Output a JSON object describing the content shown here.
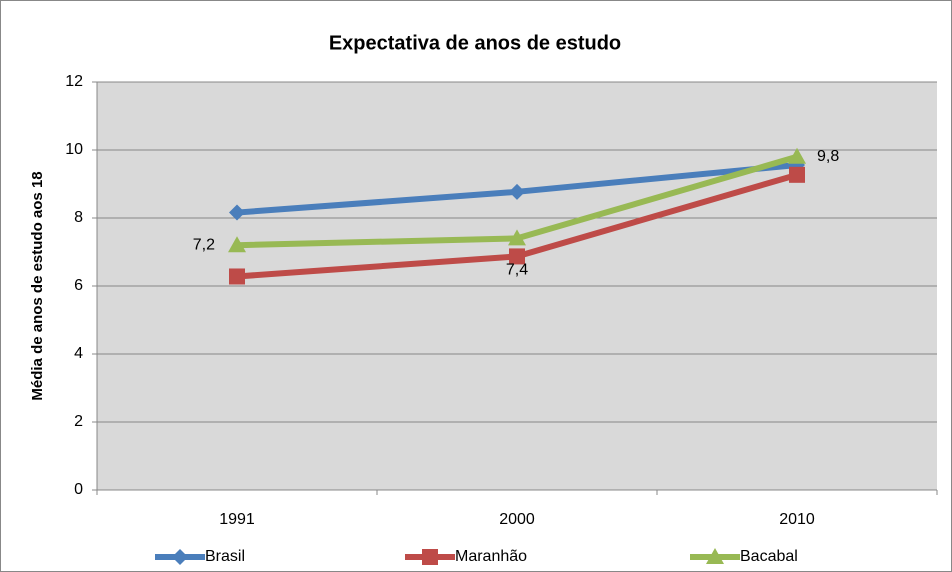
{
  "chart_data": {
    "type": "line",
    "title": "Expectativa de anos de estudo",
    "ylabel": "Média de anos de estudo aos 18",
    "categories": [
      "1991",
      "2000",
      "2010"
    ],
    "series": [
      {
        "name": "Brasil",
        "color": "#4a7ebb",
        "marker": "diamond",
        "values": [
          8.16,
          8.77,
          9.56
        ]
      },
      {
        "name": "Maranhão",
        "color": "#be4b48",
        "marker": "square",
        "values": [
          6.28,
          6.87,
          9.27
        ]
      },
      {
        "name": "Bacabal",
        "color": "#98b954",
        "marker": "triangle",
        "values": [
          7.2,
          7.4,
          9.8
        ],
        "value_labels": [
          "7,2",
          "7,4",
          "9,8"
        ]
      }
    ],
    "ylim": [
      0,
      12
    ],
    "yticks": [
      0,
      2,
      4,
      6,
      8,
      10,
      12
    ],
    "grid": true,
    "legend": "bottom"
  }
}
